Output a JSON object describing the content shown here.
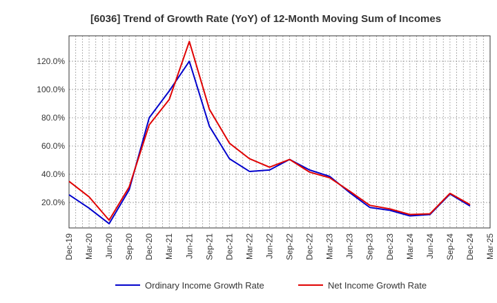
{
  "chart_data": {
    "type": "line",
    "title": "[6036]  Trend of Growth Rate (YoY) of 12-Month Moving Sum of Incomes",
    "xlabel": "",
    "ylabel": "",
    "x_tick_labels": [
      "Dec-19",
      "Mar-20",
      "Jun-20",
      "Sep-20",
      "Dec-20",
      "Mar-21",
      "Jun-21",
      "Sep-21",
      "Dec-21",
      "Mar-22",
      "Jun-22",
      "Sep-22",
      "Dec-22",
      "Mar-23",
      "Jun-23",
      "Sep-23",
      "Dec-23",
      "Mar-24",
      "Jun-24",
      "Sep-24",
      "Dec-24",
      "Mar-25"
    ],
    "y_tick_values": [
      20,
      40,
      60,
      80,
      100,
      120
    ],
    "y_tick_labels": [
      "20.0%",
      "40.0%",
      "60.0%",
      "80.0%",
      "100.0%",
      "120.0%"
    ],
    "ylim": [
      2,
      138
    ],
    "grid": true,
    "legend_position": "bottom",
    "x": [
      "Dec-19",
      "Jan-20",
      "Feb-20",
      "Mar-20",
      "Apr-20",
      "May-20",
      "Jun-20",
      "Jul-20",
      "Aug-20",
      "Sep-20",
      "Oct-20",
      "Nov-20",
      "Dec-20",
      "Jan-21",
      "Feb-21",
      "Mar-21",
      "Apr-21",
      "May-21",
      "Jun-21",
      "Jul-21",
      "Aug-21",
      "Sep-21",
      "Oct-21",
      "Nov-21",
      "Dec-21",
      "Jan-22",
      "Feb-22",
      "Mar-22",
      "Apr-22",
      "May-22",
      "Jun-22",
      "Jul-22",
      "Aug-22",
      "Sep-22",
      "Oct-22",
      "Nov-22",
      "Dec-22",
      "Jan-23",
      "Feb-23",
      "Mar-23",
      "Apr-23",
      "May-23",
      "Jun-23",
      "Jul-23",
      "Aug-23",
      "Sep-23",
      "Oct-23",
      "Nov-23",
      "Dec-23",
      "Jan-24",
      "Feb-24",
      "Mar-24",
      "Apr-24",
      "May-24",
      "Jun-24",
      "Jul-24",
      "Aug-24",
      "Sep-24",
      "Oct-24",
      "Nov-24",
      "Dec-24",
      "Jan-25",
      "Feb-25",
      "Mar-25"
    ],
    "series": [
      {
        "name": "Ordinary Income Growth Rate",
        "color": "#0000cc",
        "points": [
          {
            "x": "Dec-19",
            "y": 25.5
          },
          {
            "x": "Mar-20",
            "y": 16
          },
          {
            "x": "Jun-20",
            "y": 5
          },
          {
            "x": "Sep-20",
            "y": 29
          },
          {
            "x": "Dec-20",
            "y": 80
          },
          {
            "x": "Mar-21",
            "y": 99
          },
          {
            "x": "Jun-21",
            "y": 120
          },
          {
            "x": "Sep-21",
            "y": 74
          },
          {
            "x": "Dec-21",
            "y": 51
          },
          {
            "x": "Mar-22",
            "y": 42
          },
          {
            "x": "Jun-22",
            "y": 43
          },
          {
            "x": "Sep-22",
            "y": 50.5
          },
          {
            "x": "Dec-22",
            "y": 43
          },
          {
            "x": "Mar-23",
            "y": 38.5
          },
          {
            "x": "Jun-23",
            "y": 27
          },
          {
            "x": "Sep-23",
            "y": 16.5
          },
          {
            "x": "Dec-23",
            "y": 14.5
          },
          {
            "x": "Mar-24",
            "y": 10.5
          },
          {
            "x": "Jun-24",
            "y": 11.5
          },
          {
            "x": "Sep-24",
            "y": 26
          },
          {
            "x": "Dec-24",
            "y": 17.5
          }
        ]
      },
      {
        "name": "Net Income Growth Rate",
        "color": "#e00000",
        "points": [
          {
            "x": "Dec-19",
            "y": 35
          },
          {
            "x": "Mar-20",
            "y": 24
          },
          {
            "x": "Jun-20",
            "y": 7.5
          },
          {
            "x": "Sep-20",
            "y": 31
          },
          {
            "x": "Dec-20",
            "y": 75
          },
          {
            "x": "Mar-21",
            "y": 93
          },
          {
            "x": "Jun-21",
            "y": 134
          },
          {
            "x": "Sep-21",
            "y": 86
          },
          {
            "x": "Dec-21",
            "y": 62
          },
          {
            "x": "Mar-22",
            "y": 51
          },
          {
            "x": "Jun-22",
            "y": 45
          },
          {
            "x": "Sep-22",
            "y": 50.5
          },
          {
            "x": "Dec-22",
            "y": 41.5
          },
          {
            "x": "Mar-23",
            "y": 37.5
          },
          {
            "x": "Jun-23",
            "y": 28
          },
          {
            "x": "Sep-23",
            "y": 18
          },
          {
            "x": "Dec-23",
            "y": 15.5
          },
          {
            "x": "Mar-24",
            "y": 11.5
          },
          {
            "x": "Jun-24",
            "y": 12
          },
          {
            "x": "Sep-24",
            "y": 26.5
          },
          {
            "x": "Dec-24",
            "y": 18.5
          }
        ]
      }
    ]
  }
}
